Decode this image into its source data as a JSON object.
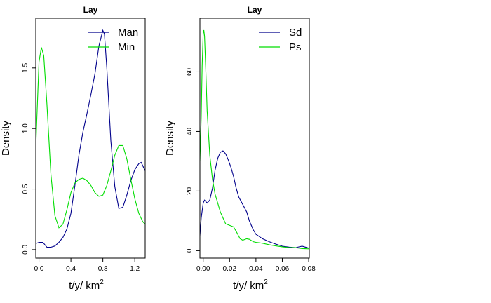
{
  "chart_data": [
    {
      "type": "line",
      "title": "Lay",
      "xlabel": "t/y/ km",
      "xlabel_sup": "2",
      "ylabel": "Density",
      "xlim": [
        -0.04,
        1.33
      ],
      "ylim": [
        -0.07,
        1.91
      ],
      "xticks": [
        "0.0",
        "0.4",
        "0.8",
        "1.2"
      ],
      "xtick_values": [
        0.0,
        0.4,
        0.8,
        1.2
      ],
      "yticks": [
        "0.0",
        "0.5",
        "1.0",
        "1.5"
      ],
      "ytick_values": [
        0.0,
        0.5,
        1.0,
        1.5
      ],
      "legend_position": "top-right",
      "series": [
        {
          "name": "Man",
          "color": "#00008b",
          "x": [
            -0.04,
            0.0,
            0.05,
            0.1,
            0.15,
            0.2,
            0.25,
            0.3,
            0.35,
            0.4,
            0.45,
            0.5,
            0.55,
            0.6,
            0.65,
            0.7,
            0.75,
            0.8,
            0.82,
            0.85,
            0.9,
            0.95,
            1.0,
            1.05,
            1.1,
            1.15,
            1.2,
            1.25,
            1.28,
            1.33
          ],
          "y": [
            0.05,
            0.06,
            0.06,
            0.02,
            0.02,
            0.03,
            0.06,
            0.1,
            0.17,
            0.3,
            0.53,
            0.78,
            0.97,
            1.12,
            1.28,
            1.45,
            1.68,
            1.81,
            1.78,
            1.5,
            0.9,
            0.52,
            0.34,
            0.35,
            0.45,
            0.57,
            0.66,
            0.71,
            0.72,
            0.65
          ]
        },
        {
          "name": "Min",
          "color": "#00dd00",
          "x": [
            -0.04,
            -0.02,
            0.0,
            0.03,
            0.06,
            0.1,
            0.15,
            0.2,
            0.25,
            0.3,
            0.35,
            0.4,
            0.45,
            0.5,
            0.55,
            0.6,
            0.65,
            0.7,
            0.75,
            0.8,
            0.85,
            0.9,
            0.95,
            1.0,
            1.05,
            1.1,
            1.15,
            1.2,
            1.25,
            1.3,
            1.33
          ],
          "y": [
            0.84,
            1.2,
            1.55,
            1.67,
            1.6,
            1.2,
            0.62,
            0.28,
            0.18,
            0.21,
            0.33,
            0.47,
            0.55,
            0.58,
            0.59,
            0.57,
            0.53,
            0.47,
            0.44,
            0.45,
            0.53,
            0.65,
            0.78,
            0.86,
            0.86,
            0.75,
            0.58,
            0.42,
            0.3,
            0.23,
            0.21
          ]
        }
      ]
    },
    {
      "type": "line",
      "title": "Lay",
      "xlabel": "t/y/ km",
      "xlabel_sup": "2",
      "ylabel": "Density",
      "xlim": [
        -0.0025,
        0.0805
      ],
      "ylim": [
        -2.5,
        78.0
      ],
      "xticks": [
        "0.00",
        "0.02",
        "0.04",
        "0.06",
        "0.08"
      ],
      "xtick_values": [
        0.0,
        0.02,
        0.04,
        0.06,
        0.08
      ],
      "yticks": [
        "0",
        "20",
        "40",
        "60"
      ],
      "ytick_values": [
        0,
        20,
        40,
        60
      ],
      "legend_position": "top-right",
      "series": [
        {
          "name": "Sd",
          "color": "#00008b",
          "x": [
            -0.0025,
            -0.0015,
            0.0,
            0.001,
            0.003,
            0.005,
            0.007,
            0.009,
            0.011,
            0.013,
            0.015,
            0.017,
            0.019,
            0.021,
            0.023,
            0.025,
            0.027,
            0.03,
            0.033,
            0.035,
            0.038,
            0.04,
            0.045,
            0.05,
            0.055,
            0.06,
            0.065,
            0.07,
            0.075,
            0.0805
          ],
          "y": [
            5,
            11,
            16,
            17,
            16,
            17,
            21,
            27,
            31,
            33,
            33.5,
            32.5,
            30.5,
            28,
            25,
            21,
            18,
            15.5,
            13,
            10,
            7,
            5.5,
            4,
            3,
            2.2,
            1.5,
            1.2,
            1.0,
            1.5,
            0.8
          ]
        },
        {
          "name": "Ps",
          "color": "#00dd00",
          "x": [
            -0.0025,
            -0.0015,
            -0.0008,
            0.0,
            0.0005,
            0.001,
            0.002,
            0.003,
            0.005,
            0.007,
            0.009,
            0.011,
            0.013,
            0.015,
            0.017,
            0.02,
            0.023,
            0.025,
            0.028,
            0.03,
            0.033,
            0.035,
            0.038,
            0.04,
            0.045,
            0.05,
            0.055,
            0.06,
            0.065,
            0.07,
            0.075,
            0.0805
          ],
          "y": [
            30,
            45,
            62,
            73,
            74,
            72,
            60,
            47,
            32,
            24,
            19,
            16,
            13,
            11,
            9,
            8.5,
            8,
            6.5,
            4,
            3.5,
            4,
            3.8,
            3,
            2.8,
            2.5,
            2,
            1.6,
            1.3,
            1.0,
            1.0,
            0.7,
            0.6
          ]
        }
      ]
    }
  ]
}
